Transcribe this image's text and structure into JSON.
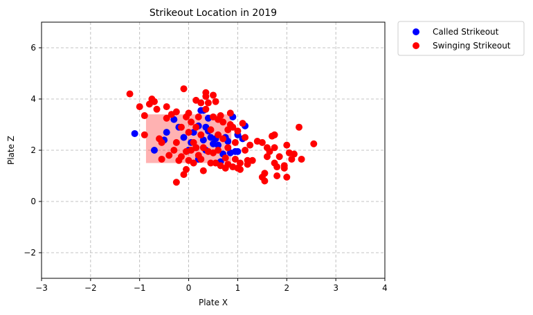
{
  "chart_data": {
    "type": "scatter",
    "title": "Strikeout Location in 2019",
    "xlabel": "Plate X",
    "ylabel": "Plate Z",
    "xlim": [
      -3,
      4
    ],
    "ylim": [
      -3,
      7
    ],
    "xticks": [
      -3,
      -2,
      -1,
      0,
      1,
      2,
      3,
      4
    ],
    "yticks": [
      -2,
      0,
      2,
      4,
      6
    ],
    "grid": true,
    "legend_position": "outside-top-right",
    "strike_zone": {
      "x": [
        -0.87,
        0.87
      ],
      "z": [
        1.5,
        3.4
      ],
      "color": "#ff0000"
    },
    "series": [
      {
        "name": "Called Strikeout",
        "color": "#0000ff",
        "points": [
          [
            -1.1,
            2.65
          ],
          [
            -0.7,
            2.0
          ],
          [
            -0.5,
            2.4
          ],
          [
            -0.45,
            2.7
          ],
          [
            -0.2,
            2.9
          ],
          [
            -0.1,
            2.5
          ],
          [
            0.0,
            2.0
          ],
          [
            0.05,
            2.3
          ],
          [
            0.1,
            2.7
          ],
          [
            0.15,
            2.1
          ],
          [
            0.2,
            2.95
          ],
          [
            0.25,
            3.55
          ],
          [
            0.3,
            3.55
          ],
          [
            0.3,
            2.4
          ],
          [
            0.35,
            2.0
          ],
          [
            0.4,
            3.25
          ],
          [
            0.4,
            2.75
          ],
          [
            0.45,
            2.5
          ],
          [
            0.55,
            2.45
          ],
          [
            0.6,
            2.2
          ],
          [
            0.7,
            1.85
          ],
          [
            0.75,
            2.5
          ],
          [
            0.8,
            2.35
          ],
          [
            0.85,
            1.9
          ],
          [
            0.9,
            3.3
          ],
          [
            0.95,
            1.95
          ],
          [
            1.0,
            2.6
          ],
          [
            1.0,
            1.95
          ],
          [
            1.1,
            2.45
          ],
          [
            1.15,
            2.95
          ],
          [
            0.65,
            1.55
          ],
          [
            0.5,
            2.25
          ],
          [
            0.35,
            2.9
          ],
          [
            -0.3,
            3.2
          ],
          [
            0.2,
            1.65
          ]
        ]
      },
      {
        "name": "Swinging Strikeout",
        "color": "#ff0000",
        "points": [
          [
            -1.2,
            4.2
          ],
          [
            -1.0,
            3.7
          ],
          [
            -0.9,
            3.35
          ],
          [
            -0.9,
            2.6
          ],
          [
            -0.75,
            4.0
          ],
          [
            -0.8,
            3.8
          ],
          [
            -0.7,
            3.9
          ],
          [
            -0.65,
            3.6
          ],
          [
            -0.6,
            2.45
          ],
          [
            -0.55,
            2.3
          ],
          [
            -0.55,
            1.65
          ],
          [
            -0.45,
            3.7
          ],
          [
            -0.4,
            1.8
          ],
          [
            -0.35,
            3.4
          ],
          [
            -0.3,
            2.0
          ],
          [
            -0.25,
            3.5
          ],
          [
            -0.25,
            2.3
          ],
          [
            -0.2,
            1.6
          ],
          [
            -0.25,
            0.75
          ],
          [
            -0.15,
            2.9
          ],
          [
            -0.1,
            4.4
          ],
          [
            -0.1,
            1.05
          ],
          [
            -0.05,
            3.3
          ],
          [
            -0.05,
            1.95
          ],
          [
            -0.05,
            1.25
          ],
          [
            0.0,
            3.45
          ],
          [
            0.0,
            2.7
          ],
          [
            0.0,
            1.6
          ],
          [
            0.05,
            3.1
          ],
          [
            0.1,
            2.3
          ],
          [
            0.1,
            1.5
          ],
          [
            0.15,
            3.95
          ],
          [
            0.15,
            2.9
          ],
          [
            0.2,
            3.3
          ],
          [
            0.2,
            1.8
          ],
          [
            0.25,
            3.85
          ],
          [
            0.25,
            2.6
          ],
          [
            0.3,
            1.2
          ],
          [
            0.3,
            2.1
          ],
          [
            0.35,
            4.25
          ],
          [
            0.35,
            4.1
          ],
          [
            0.35,
            3.6
          ],
          [
            0.4,
            3.85
          ],
          [
            0.45,
            2.8
          ],
          [
            0.45,
            1.5
          ],
          [
            0.5,
            4.15
          ],
          [
            0.5,
            3.3
          ],
          [
            0.5,
            1.9
          ],
          [
            0.55,
            3.9
          ],
          [
            0.6,
            3.2
          ],
          [
            0.6,
            2.6
          ],
          [
            0.6,
            2.0
          ],
          [
            0.65,
            1.4
          ],
          [
            0.7,
            3.1
          ],
          [
            0.7,
            2.45
          ],
          [
            0.75,
            1.7
          ],
          [
            0.75,
            1.3
          ],
          [
            0.8,
            2.8
          ],
          [
            0.8,
            2.1
          ],
          [
            0.8,
            1.45
          ],
          [
            0.85,
            3.0
          ],
          [
            0.9,
            2.9
          ],
          [
            0.9,
            1.35
          ],
          [
            0.95,
            1.65
          ],
          [
            1.0,
            1.3
          ],
          [
            1.05,
            1.5
          ],
          [
            1.05,
            1.25
          ],
          [
            1.1,
            3.05
          ],
          [
            1.15,
            2.5
          ],
          [
            1.15,
            2.0
          ],
          [
            1.2,
            1.6
          ],
          [
            1.2,
            1.45
          ],
          [
            1.25,
            2.2
          ],
          [
            1.3,
            1.6
          ],
          [
            1.4,
            2.35
          ],
          [
            1.5,
            2.3
          ],
          [
            1.5,
            0.95
          ],
          [
            1.55,
            1.1
          ],
          [
            1.55,
            0.8
          ],
          [
            1.6,
            2.1
          ],
          [
            1.6,
            1.75
          ],
          [
            1.65,
            1.95
          ],
          [
            1.7,
            2.55
          ],
          [
            1.75,
            2.6
          ],
          [
            1.75,
            2.1
          ],
          [
            1.75,
            1.5
          ],
          [
            1.8,
            1.35
          ],
          [
            1.8,
            1.0
          ],
          [
            1.85,
            1.75
          ],
          [
            1.95,
            1.4
          ],
          [
            1.95,
            1.3
          ],
          [
            2.0,
            2.2
          ],
          [
            2.0,
            0.95
          ],
          [
            2.05,
            1.9
          ],
          [
            2.1,
            1.65
          ],
          [
            2.15,
            1.85
          ],
          [
            2.25,
            2.9
          ],
          [
            2.3,
            1.65
          ],
          [
            2.55,
            2.25
          ],
          [
            0.4,
            1.95
          ],
          [
            0.25,
            1.65
          ],
          [
            0.15,
            2.1
          ],
          [
            -0.15,
            1.75
          ],
          [
            0.55,
            1.5
          ],
          [
            0.65,
            3.35
          ],
          [
            0.85,
            3.45
          ],
          [
            -0.45,
            3.25
          ],
          [
            0.05,
            2.0
          ],
          [
            0.95,
            2.3
          ],
          [
            1.0,
            2.75
          ]
        ]
      }
    ]
  }
}
